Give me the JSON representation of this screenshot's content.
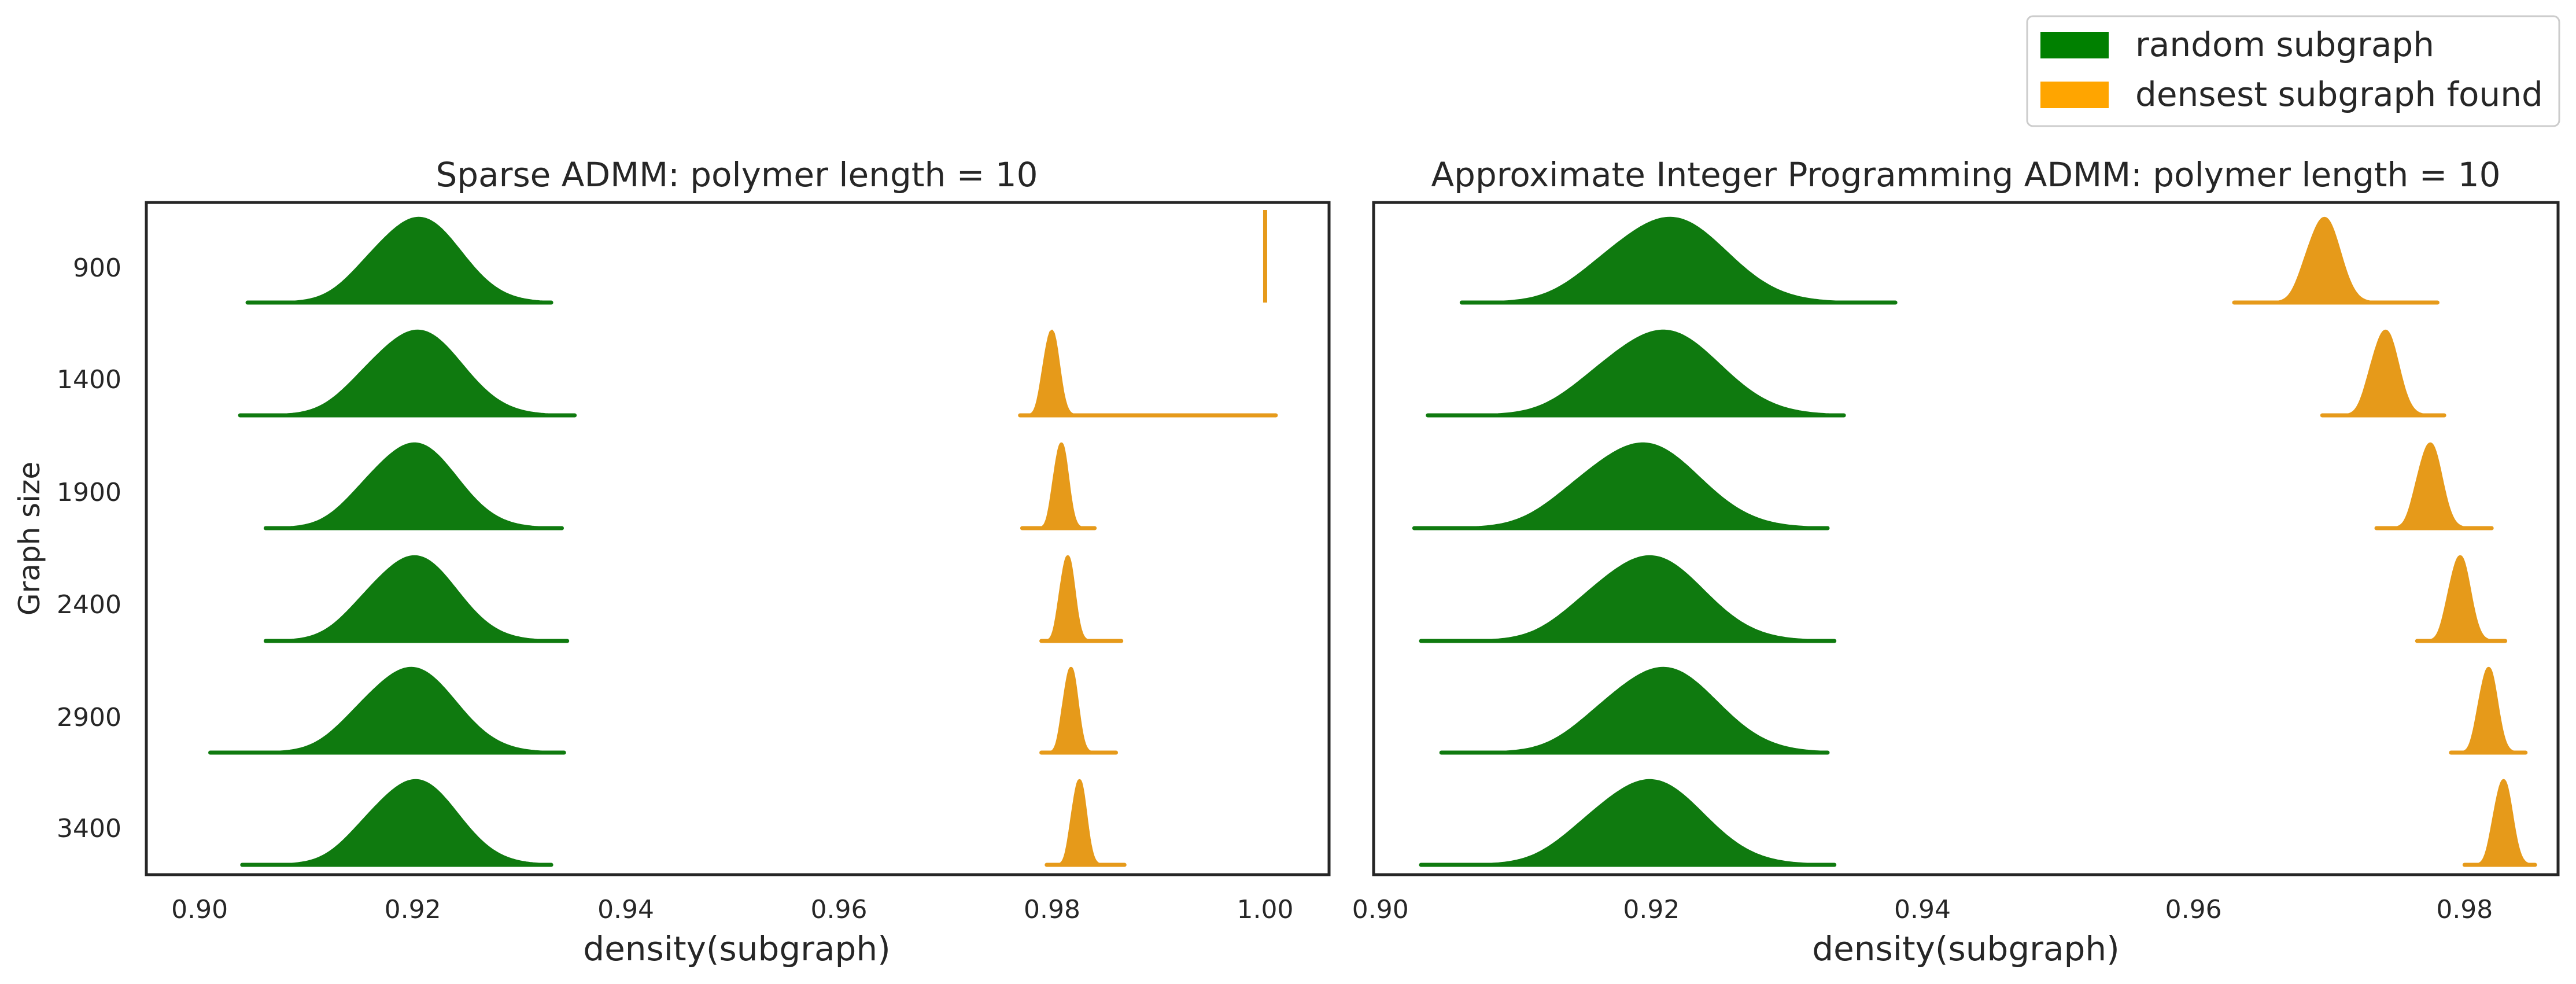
{
  "chart_data": [
    {
      "type": "ridgeline",
      "title": "Sparse ADMM: polymer length = 10",
      "xlabel": "density(subgraph)",
      "ylabel": "Graph size",
      "xlim": [
        0.895,
        1.006
      ],
      "xticks": [
        "0.90",
        "0.92",
        "0.94",
        "0.96",
        "0.98",
        "1.00"
      ],
      "categories": [
        "900",
        "1400",
        "1900",
        "2400",
        "2900",
        "3400"
      ],
      "grid": false,
      "series": [
        {
          "name": "random subgraph",
          "color": "#0f7a0f",
          "distributions": [
            {
              "center": 0.9207,
              "min": 0.9045,
              "max": 0.933,
              "spread": 0.0038
            },
            {
              "center": 0.9206,
              "min": 0.9038,
              "max": 0.9352,
              "spread": 0.004
            },
            {
              "center": 0.9203,
              "min": 0.9062,
              "max": 0.934,
              "spread": 0.0038
            },
            {
              "center": 0.9203,
              "min": 0.9062,
              "max": 0.9345,
              "spread": 0.0038
            },
            {
              "center": 0.92,
              "min": 0.901,
              "max": 0.9342,
              "spread": 0.004
            },
            {
              "center": 0.9204,
              "min": 0.904,
              "max": 0.933,
              "spread": 0.0038
            }
          ]
        },
        {
          "name": "densest subgraph found",
          "color": "#e69a1a",
          "distributions": [
            {
              "center": 1.0,
              "min": 1.0,
              "max": 1.0,
              "spread": 0
            },
            {
              "center": 0.98,
              "min": 0.977,
              "max": 1.001,
              "spread": 0.00065
            },
            {
              "center": 0.9809,
              "min": 0.9772,
              "max": 0.984,
              "spread": 0.0006
            },
            {
              "center": 0.9815,
              "min": 0.979,
              "max": 0.9865,
              "spread": 0.0006
            },
            {
              "center": 0.9818,
              "min": 0.979,
              "max": 0.986,
              "spread": 0.0006
            },
            {
              "center": 0.9826,
              "min": 0.9795,
              "max": 0.9868,
              "spread": 0.0006
            }
          ]
        }
      ]
    },
    {
      "type": "ridgeline",
      "title": "Approximate Integer Programming ADMM: polymer length = 10",
      "xlabel": "density(subgraph)",
      "ylabel": "",
      "xlim": [
        0.8995,
        0.9869
      ],
      "xticks": [
        "0.90",
        "0.92",
        "0.94",
        "0.96",
        "0.98"
      ],
      "categories": [
        "900",
        "1400",
        "1900",
        "2400",
        "2900",
        "3400"
      ],
      "grid": false,
      "series": [
        {
          "name": "random subgraph",
          "color": "#0f7a0f",
          "distributions": [
            {
              "center": 0.9215,
              "min": 0.906,
              "max": 0.938,
              "spread": 0.004
            },
            {
              "center": 0.921,
              "min": 0.9035,
              "max": 0.9342,
              "spread": 0.004
            },
            {
              "center": 0.9195,
              "min": 0.9025,
              "max": 0.933,
              "spread": 0.004
            },
            {
              "center": 0.92,
              "min": 0.903,
              "max": 0.9335,
              "spread": 0.0038
            },
            {
              "center": 0.921,
              "min": 0.9045,
              "max": 0.933,
              "spread": 0.0038
            },
            {
              "center": 0.92,
              "min": 0.903,
              "max": 0.9335,
              "spread": 0.0038
            }
          ]
        },
        {
          "name": "densest subgraph found",
          "color": "#e69a1a",
          "distributions": [
            {
              "center": 0.9697,
              "min": 0.963,
              "max": 0.978,
              "spread": 0.0011
            },
            {
              "center": 0.9742,
              "min": 0.9695,
              "max": 0.9785,
              "spread": 0.0009
            },
            {
              "center": 0.9775,
              "min": 0.9735,
              "max": 0.982,
              "spread": 0.0008
            },
            {
              "center": 0.9797,
              "min": 0.9765,
              "max": 0.983,
              "spread": 0.0007
            },
            {
              "center": 0.9818,
              "min": 0.979,
              "max": 0.9845,
              "spread": 0.0006
            },
            {
              "center": 0.9829,
              "min": 0.98,
              "max": 0.9852,
              "spread": 0.0006
            }
          ]
        }
      ]
    }
  ],
  "legend": {
    "placement": "top-right",
    "items": [
      {
        "label": "random subgraph",
        "color": "#008000"
      },
      {
        "label": "densest subgraph found",
        "color": "#ffa500"
      }
    ]
  }
}
